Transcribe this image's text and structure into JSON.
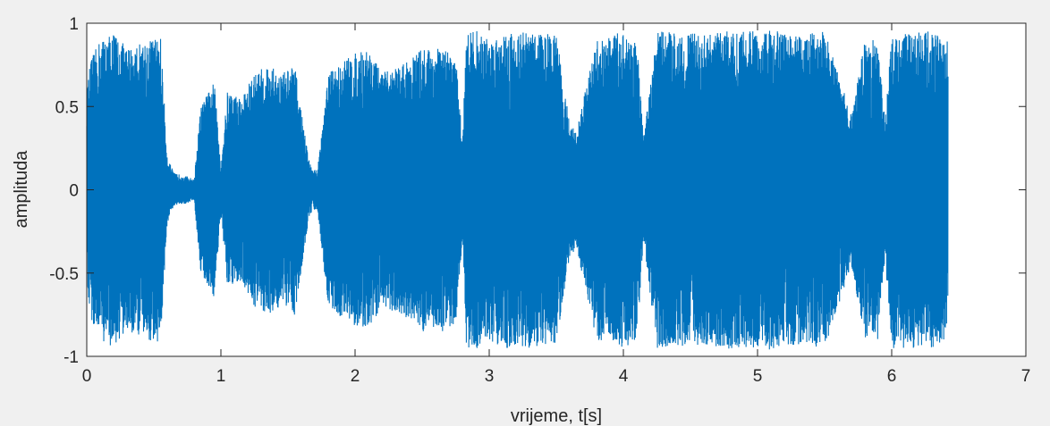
{
  "chart_data": {
    "type": "line",
    "title": "",
    "xlabel": "vrijeme, t[s]",
    "ylabel": "amplituda",
    "xlim": [
      0,
      7
    ],
    "ylim": [
      -1,
      1
    ],
    "xticks": [
      "0",
      "1",
      "2",
      "3",
      "4",
      "5",
      "6",
      "7"
    ],
    "yticks": [
      "1",
      "0.5",
      "0",
      "-0.5",
      "-1"
    ],
    "grid": false,
    "legend": "none",
    "series": [
      {
        "color": "#0072bd",
        "envelope_time_s": [
          0.0,
          0.03,
          0.1,
          0.2,
          0.3,
          0.45,
          0.55,
          0.6,
          0.65,
          0.75,
          0.8,
          0.85,
          0.95,
          1.0,
          1.05,
          1.15,
          1.25,
          1.35,
          1.45,
          1.55,
          1.65,
          1.68,
          1.72,
          1.8,
          1.95,
          2.1,
          2.2,
          2.35,
          2.5,
          2.65,
          2.75,
          2.8,
          2.83,
          2.9,
          3.0,
          3.1,
          3.3,
          3.5,
          3.6,
          3.65,
          3.8,
          4.0,
          4.1,
          4.15,
          4.25,
          4.4,
          4.6,
          4.8,
          4.95,
          5.1,
          5.3,
          5.5,
          5.7,
          5.8,
          5.9,
          5.95,
          6.0,
          6.1,
          6.3,
          6.42
        ],
        "envelope_amplitude": [
          0.6,
          0.78,
          0.9,
          0.95,
          0.85,
          0.9,
          0.92,
          0.2,
          0.1,
          0.08,
          0.06,
          0.5,
          0.65,
          0.15,
          0.6,
          0.55,
          0.7,
          0.75,
          0.7,
          0.75,
          0.2,
          0.12,
          0.12,
          0.7,
          0.8,
          0.85,
          0.7,
          0.75,
          0.85,
          0.85,
          0.8,
          0.3,
          0.95,
          0.96,
          0.9,
          0.95,
          0.95,
          0.93,
          0.4,
          0.35,
          0.9,
          0.95,
          0.92,
          0.3,
          0.95,
          0.95,
          0.93,
          0.96,
          0.95,
          0.96,
          0.93,
          0.95,
          0.45,
          0.9,
          0.9,
          0.4,
          0.96,
          0.95,
          0.95,
          0.9
        ]
      }
    ]
  }
}
